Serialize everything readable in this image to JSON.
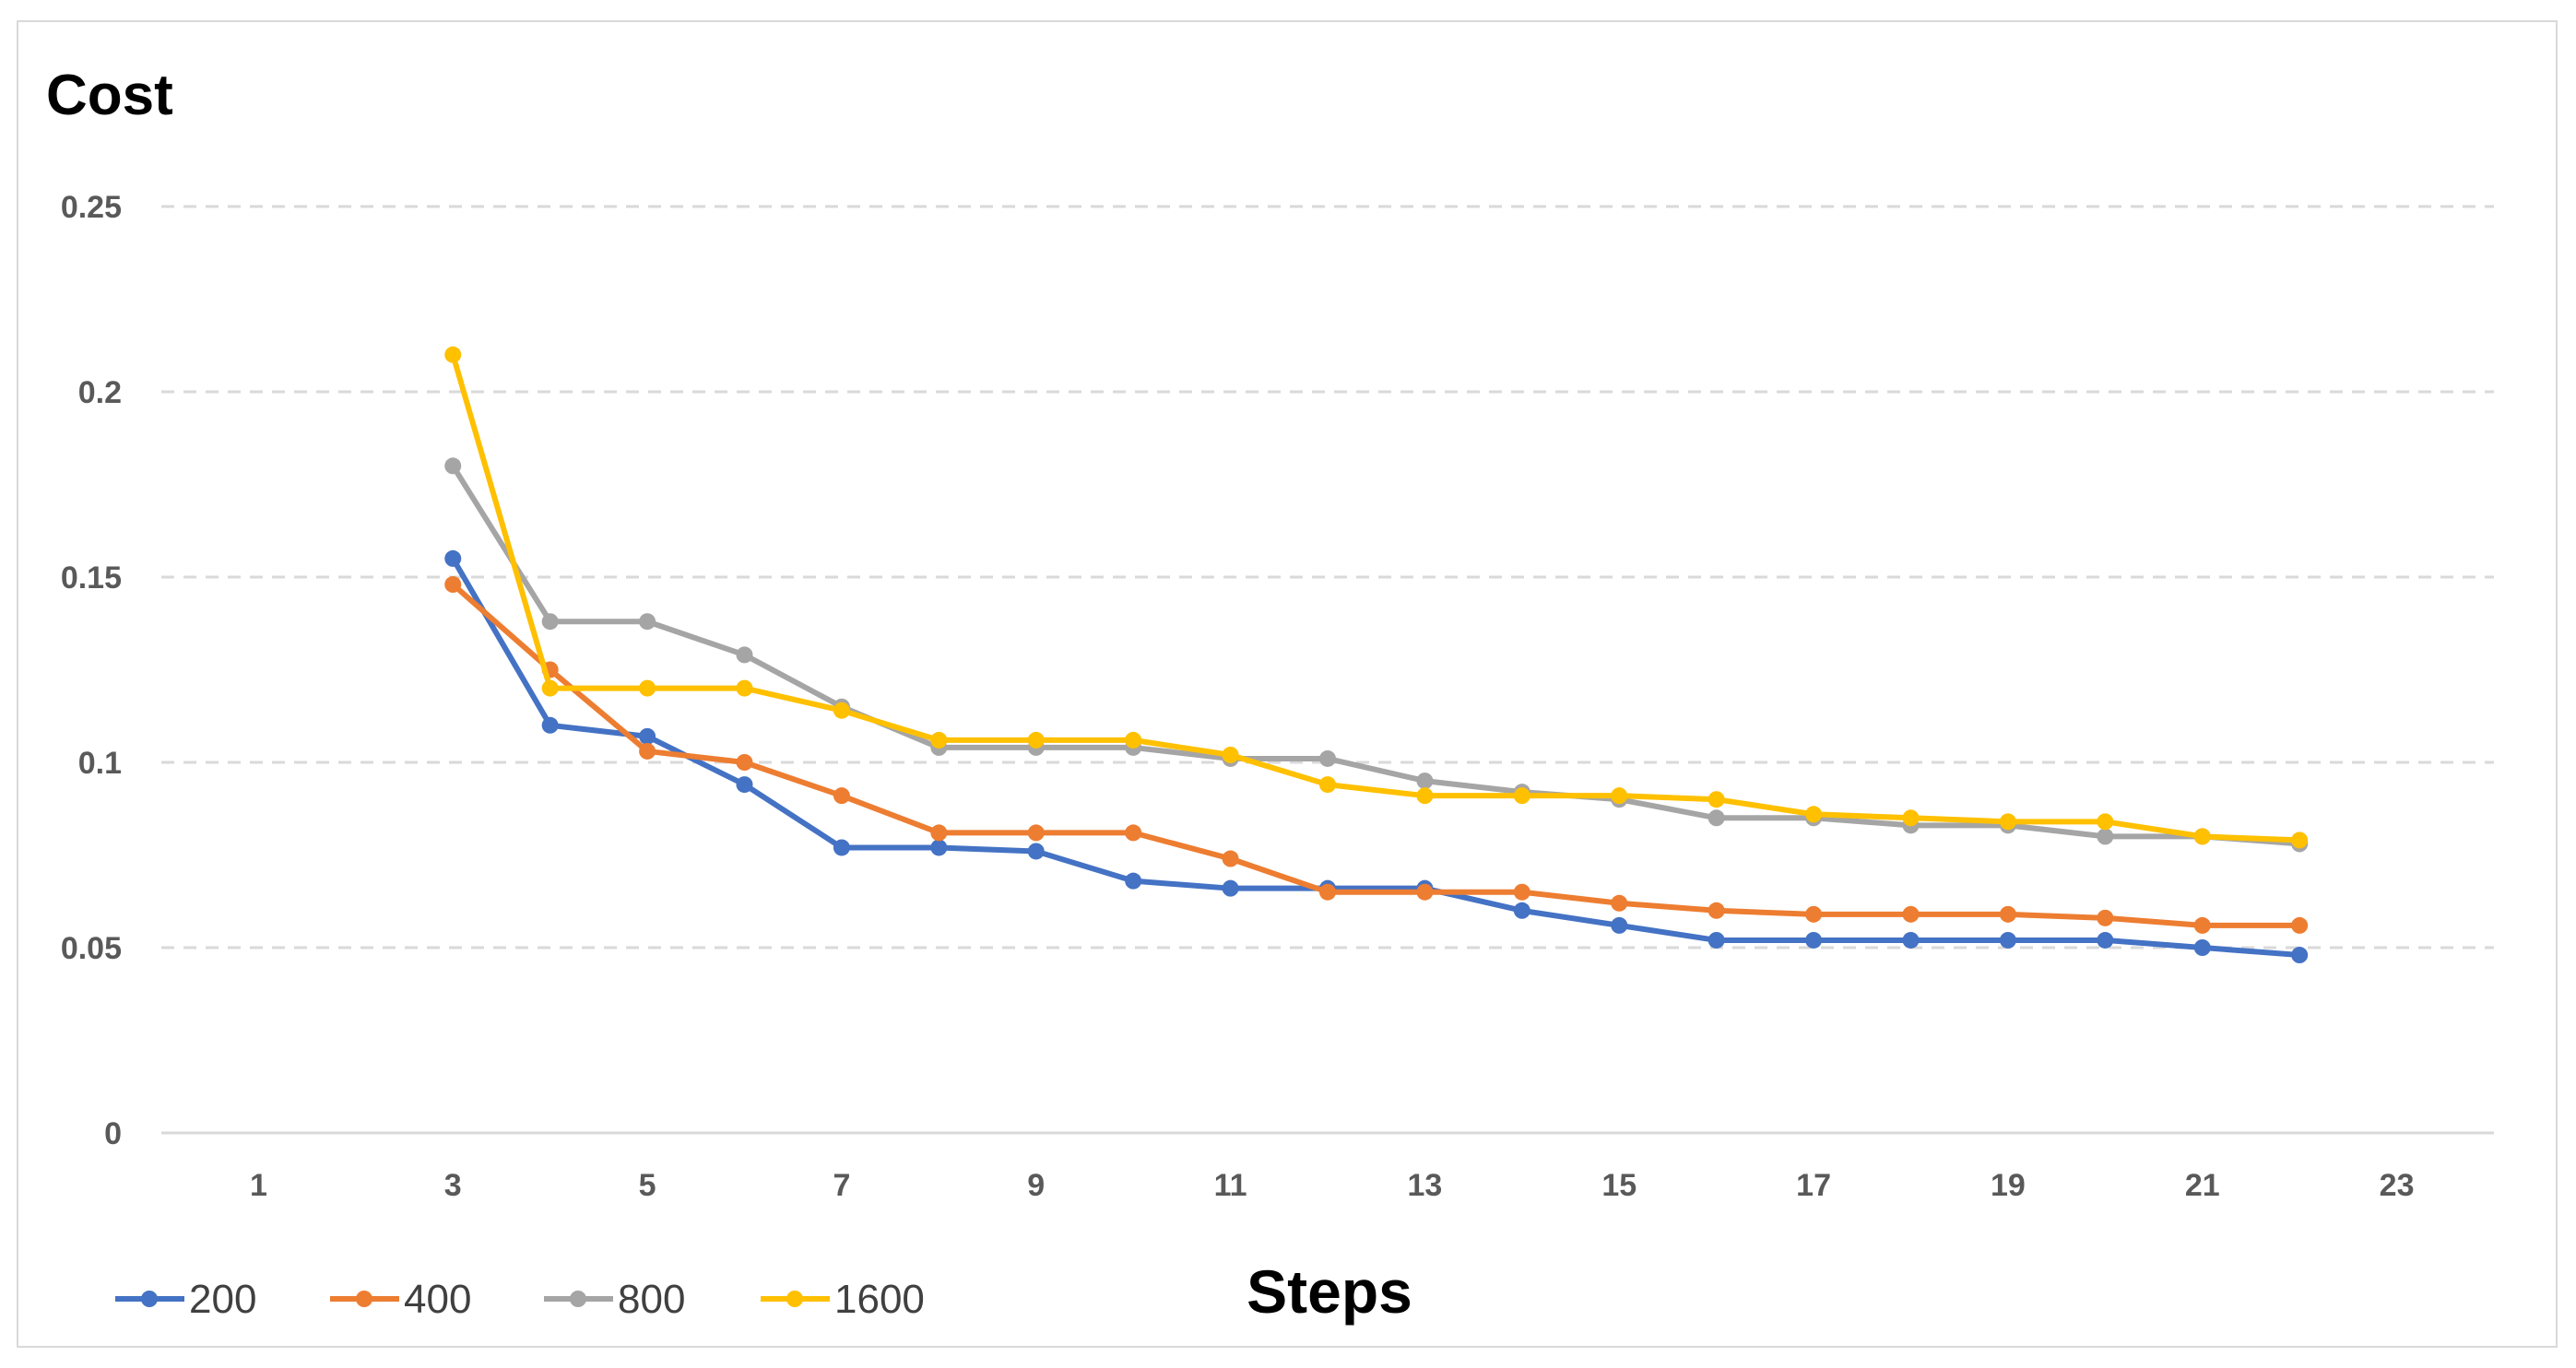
{
  "chart_data": {
    "type": "line",
    "ylabel": "Cost",
    "xlabel": "Steps",
    "xlim": [
      0,
      24
    ],
    "ylim": [
      0,
      0.25
    ],
    "x_ticks": [
      "1",
      "3",
      "5",
      "7",
      "9",
      "11",
      "13",
      "15",
      "17",
      "19",
      "21",
      "23"
    ],
    "y_ticks": [
      "0",
      "0.05",
      "0.1",
      "0.15",
      "0.2",
      "0.25"
    ],
    "grid": true,
    "legend_position": "bottom-left",
    "x": [
      3,
      4,
      5,
      6,
      7,
      8,
      9,
      10,
      11,
      12,
      13,
      14,
      15,
      16,
      17,
      18,
      19,
      20,
      21,
      22
    ],
    "series": [
      {
        "name": "200",
        "color": "#4472C4",
        "values": [
          0.155,
          0.11,
          0.107,
          0.094,
          0.077,
          0.077,
          0.076,
          0.068,
          0.066,
          0.066,
          0.066,
          0.06,
          0.056,
          0.052,
          0.052,
          0.052,
          0.052,
          0.052,
          0.05,
          0.048
        ]
      },
      {
        "name": "400",
        "color": "#ED7D31",
        "values": [
          0.148,
          0.125,
          0.103,
          0.1,
          0.091,
          0.081,
          0.081,
          0.081,
          0.074,
          0.065,
          0.065,
          0.065,
          0.062,
          0.06,
          0.059,
          0.059,
          0.059,
          0.058,
          0.056,
          0.056
        ]
      },
      {
        "name": "800",
        "color": "#A5A5A5",
        "values": [
          0.18,
          0.138,
          0.138,
          0.129,
          0.115,
          0.104,
          0.104,
          0.104,
          0.101,
          0.101,
          0.095,
          0.092,
          0.09,
          0.085,
          0.085,
          0.083,
          0.083,
          0.08,
          0.08,
          0.078
        ]
      },
      {
        "name": "1600",
        "color": "#FFC000",
        "values": [
          0.21,
          0.12,
          0.12,
          0.12,
          0.114,
          0.106,
          0.106,
          0.106,
          0.102,
          0.094,
          0.091,
          0.091,
          0.091,
          0.09,
          0.086,
          0.085,
          0.084,
          0.084,
          0.08,
          0.079
        ]
      }
    ]
  }
}
